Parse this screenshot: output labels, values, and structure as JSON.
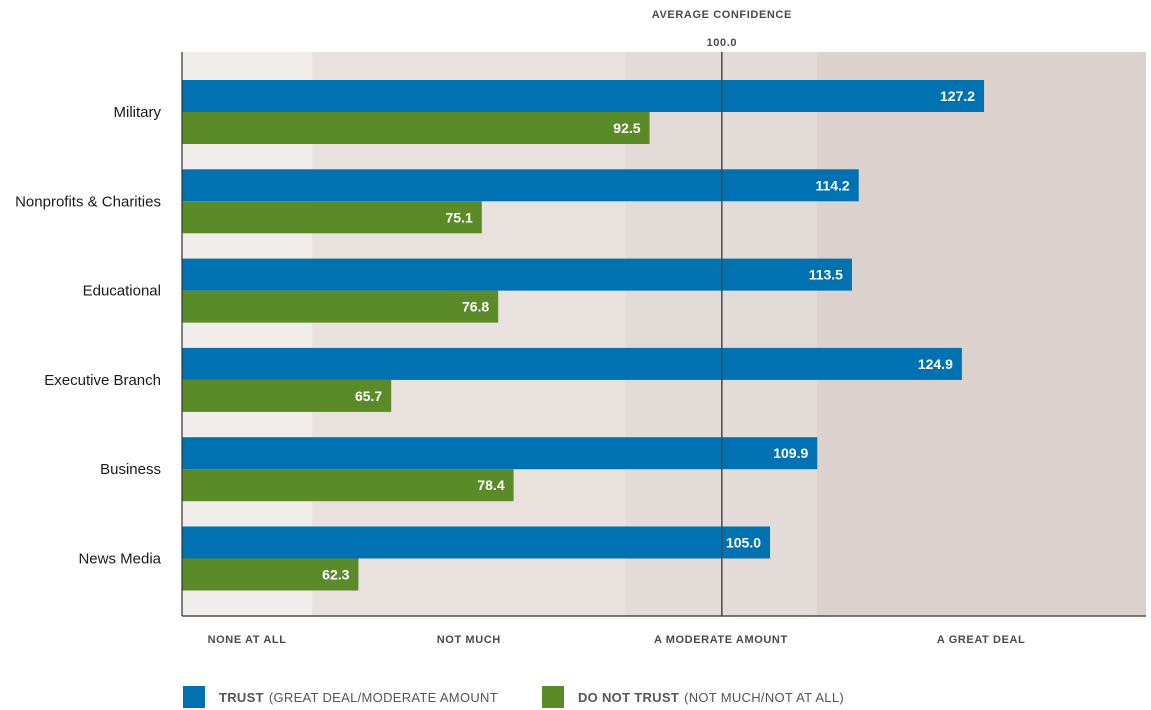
{
  "chart_data": {
    "type": "bar",
    "orientation": "horizontal",
    "categories": [
      "Military",
      "Nonprofits & Charities",
      "Educational",
      "Executive Branch",
      "Business",
      "News Media"
    ],
    "series": [
      {
        "name": "TRUST (GREAT DEAL/MODERATE AMOUNT",
        "values": [
          127.2,
          114.2,
          113.5,
          124.9,
          109.9,
          105.0
        ],
        "color": "#0072b1"
      },
      {
        "name": "DO NOT TRUST (NOT MUCH/NOT AT ALL)",
        "values": [
          92.5,
          75.1,
          76.8,
          65.7,
          78.4,
          62.3
        ],
        "color": "#5b8a28"
      }
    ],
    "value_labels": {
      "trust": [
        "127.2",
        "114.2",
        "113.5",
        "124.9",
        "109.9",
        "105.0"
      ],
      "do_not_trust": [
        "92.5",
        "75.1",
        "76.8",
        "65.7",
        "78.4",
        "62.3"
      ]
    },
    "xlim": [
      44,
      144
    ],
    "reference_line": {
      "value": 100.0,
      "label_top": "AVERAGE CONFIDENCE",
      "label_value": "100.0"
    },
    "bands": [
      {
        "label": "NONE AT ALL",
        "from": 44,
        "to": 57.5,
        "color": "#f1edea"
      },
      {
        "label": "NOT MUCH",
        "from": 57.5,
        "to": 90,
        "color": "#e8e1dd"
      },
      {
        "label": "A MODERATE AMOUNT",
        "from": 90,
        "to": 109.8,
        "color": "#e2dbd7"
      },
      {
        "label": "A GREAT DEAL",
        "from": 109.8,
        "to": 144,
        "color": "#dbd2cd"
      }
    ],
    "legend_position": "bottom-left"
  },
  "legend": {
    "trust_bold": "TRUST",
    "trust_rest": "(GREAT DEAL/MODERATE AMOUNT",
    "distrust_bold": "DO NOT TRUST",
    "distrust_rest": "(NOT MUCH/NOT AT ALL)"
  }
}
